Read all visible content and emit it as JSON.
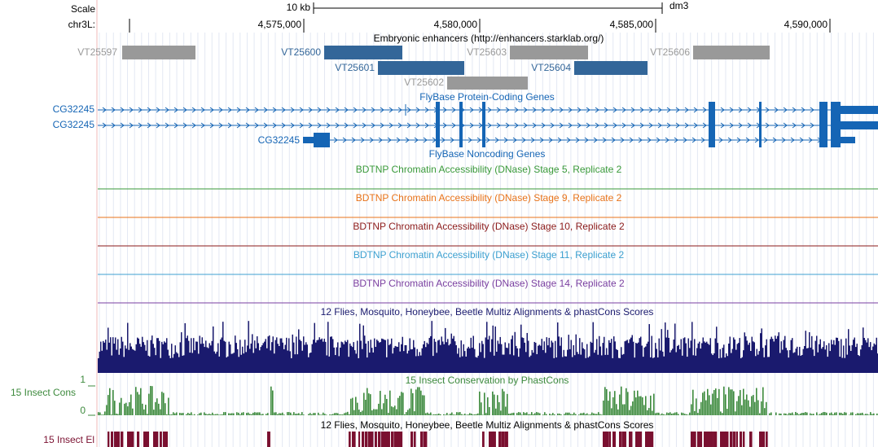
{
  "ruler": {
    "scale_label": "Scale",
    "scale_bar": "10 kb",
    "assembly": "dm3",
    "chrom_label": "chr3L:",
    "positions": [
      "4,575,000",
      "4,580,000",
      "4,585,000",
      "4,590,000"
    ]
  },
  "enhancers": {
    "title": "Embryonic enhancers (http://enhancers.starklab.org/)",
    "items": [
      "VT25597",
      "VT25600",
      "VT25603",
      "VT25606",
      "VT25601",
      "VT25604",
      "VT25602"
    ]
  },
  "protein_genes": {
    "title": "FlyBase Protein-Coding Genes",
    "items": [
      "CG32245",
      "CG32245",
      "CG32245"
    ]
  },
  "noncoding_genes": {
    "title": "FlyBase Noncoding Genes"
  },
  "dnase_tracks": [
    "BDTNP Chromatin Accessibility (DNase) Stage 5, Replicate 2",
    "BDTNP Chromatin Accessibility (DNase) Stage 9, Replicate 2",
    "BDTNP Chromatin Accessibility (DNase) Stage 10, Replicate 2",
    "BDTNP Chromatin Accessibility (DNase) Stage 11, Replicate 2",
    "BDTNP Chromatin Accessibility (DNase) Stage 14, Replicate 2"
  ],
  "multiz": {
    "title": "12 Flies, Mosquito, Honeybee, Beetle Multiz Alignments & phastCons Scores"
  },
  "conservation": {
    "title": "15 Insect Conservation by PhastCons",
    "side_label": "15 Insect Cons",
    "axis_top": "1",
    "axis_bottom": "0"
  },
  "elements": {
    "title": "12 Flies, Mosquito, Honeybee, Beetle Multiz Alignments & phastCons Scores",
    "side_label": "15 Insect El"
  }
}
